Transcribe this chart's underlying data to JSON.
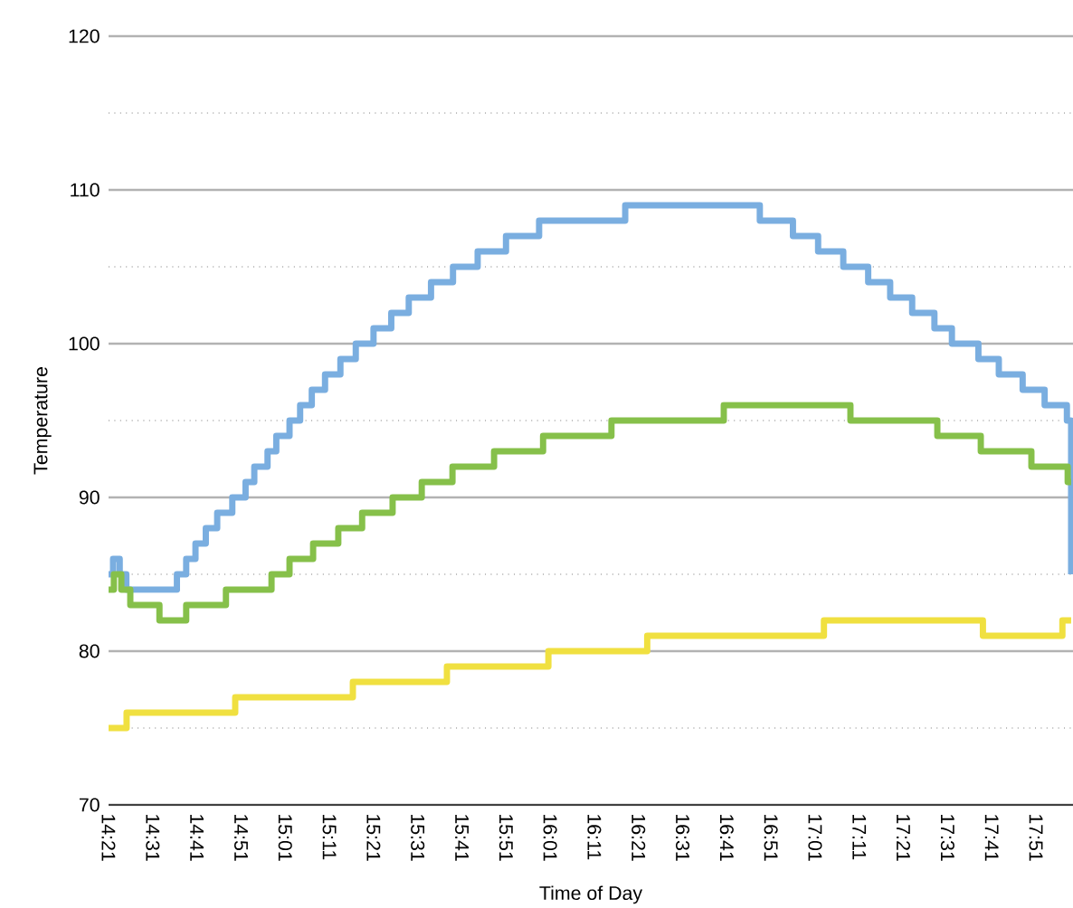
{
  "chart_data": {
    "type": "step",
    "xlabel": "Time of Day",
    "ylabel": "Temperature",
    "xlim": [
      14.35,
      17.99
    ],
    "ylim": [
      70,
      120
    ],
    "yticks": [
      70,
      80,
      90,
      100,
      110,
      120
    ],
    "xticks": [
      {
        "value": 14.35,
        "label": "14:21"
      },
      {
        "value": 14.5167,
        "label": "14:31"
      },
      {
        "value": 14.6833,
        "label": "14:41"
      },
      {
        "value": 14.85,
        "label": "14:51"
      },
      {
        "value": 15.0167,
        "label": "15:01"
      },
      {
        "value": 15.1833,
        "label": "15:11"
      },
      {
        "value": 15.35,
        "label": "15:21"
      },
      {
        "value": 15.5167,
        "label": "15:31"
      },
      {
        "value": 15.6833,
        "label": "15:41"
      },
      {
        "value": 15.85,
        "label": "15:51"
      },
      {
        "value": 16.0167,
        "label": "16:01"
      },
      {
        "value": 16.1833,
        "label": "16:11"
      },
      {
        "value": 16.35,
        "label": "16:21"
      },
      {
        "value": 16.5167,
        "label": "16:31"
      },
      {
        "value": 16.6833,
        "label": "16:41"
      },
      {
        "value": 16.85,
        "label": "16:51"
      },
      {
        "value": 17.0167,
        "label": "17:01"
      },
      {
        "value": 17.1833,
        "label": "17:11"
      },
      {
        "value": 17.35,
        "label": "17:21"
      },
      {
        "value": 17.5167,
        "label": "17:31"
      },
      {
        "value": 17.6833,
        "label": "17:41"
      },
      {
        "value": 17.85,
        "label": "17:51"
      }
    ],
    "grid": "y",
    "marker": "none",
    "line_style": "solid",
    "series": [
      {
        "color": "#7aaee0",
        "x": [
          14.35,
          14.367,
          14.392,
          14.417,
          14.608,
          14.643,
          14.678,
          14.717,
          14.76,
          14.817,
          14.867,
          14.9,
          14.95,
          14.983,
          15.033,
          15.073,
          15.117,
          15.167,
          15.225,
          15.283,
          15.35,
          15.417,
          15.483,
          15.567,
          15.65,
          15.743,
          15.85,
          15.975,
          16.3,
          16.808,
          16.933,
          17.028,
          17.123,
          17.217,
          17.3,
          17.383,
          17.467,
          17.533,
          17.633,
          17.71,
          17.8,
          17.883,
          17.967,
          17.983
        ],
        "values": [
          85,
          86,
          85,
          84,
          85,
          86,
          87,
          88,
          89,
          90,
          91,
          92,
          93,
          94,
          95,
          96,
          97,
          98,
          99,
          100,
          101,
          102,
          103,
          104,
          105,
          106,
          107,
          108,
          109,
          108,
          107,
          106,
          105,
          104,
          103,
          102,
          101,
          100,
          99,
          98,
          97,
          96,
          95,
          85
        ]
      },
      {
        "color": "#86c04a",
        "x": [
          14.35,
          14.37,
          14.398,
          14.432,
          14.542,
          14.643,
          14.793,
          14.965,
          15.033,
          15.122,
          15.217,
          15.307,
          15.422,
          15.532,
          15.648,
          15.805,
          15.99,
          16.248,
          16.672,
          17.15,
          17.478,
          17.642,
          17.833,
          17.97,
          17.983
        ],
        "values": [
          84,
          85,
          84,
          83,
          82,
          83,
          84,
          85,
          86,
          87,
          88,
          89,
          90,
          91,
          92,
          93,
          94,
          95,
          96,
          95,
          94,
          93,
          92,
          91,
          91
        ]
      },
      {
        "color": "#f0e040",
        "x": [
          14.35,
          14.418,
          14.828,
          15.272,
          15.627,
          16.01,
          16.383,
          17.05,
          17.65,
          17.95,
          17.983
        ],
        "values": [
          75,
          76,
          77,
          78,
          79,
          80,
          81,
          82,
          81,
          82,
          82
        ]
      }
    ]
  }
}
